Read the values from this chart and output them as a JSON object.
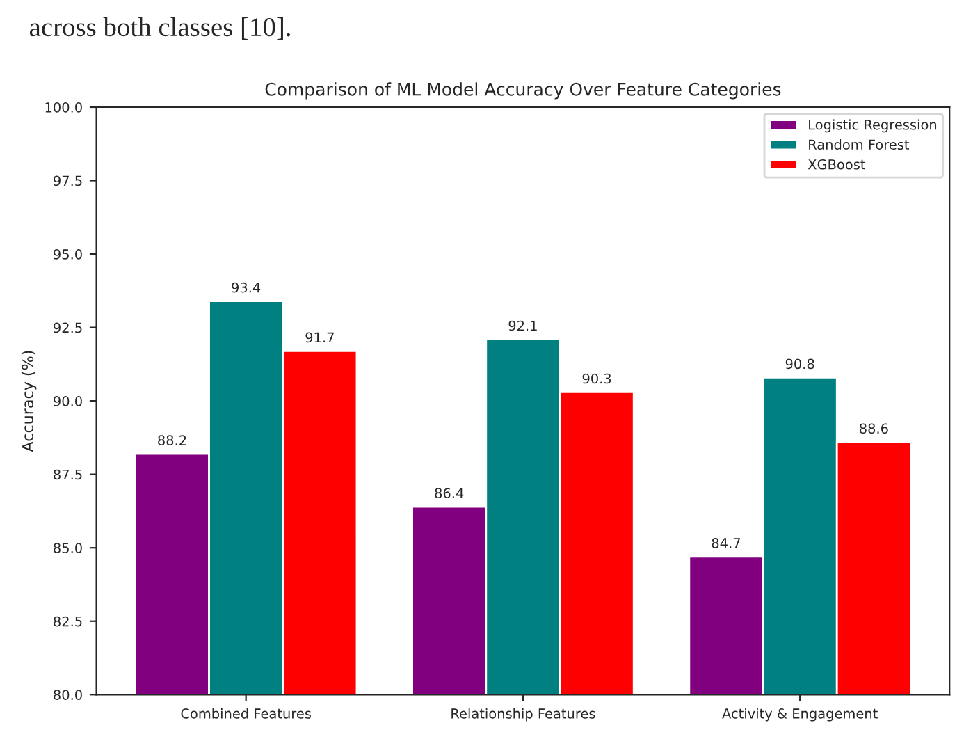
{
  "chart_data": {
    "type": "bar",
    "title": "Comparison of ML Model Accuracy Over Feature Categories",
    "ylabel": "Accuracy (%)",
    "categories": [
      "Combined Features",
      "Relationship Features",
      "Activity & Engagement"
    ],
    "series": [
      {
        "name": "Logistic Regression",
        "color": "#800080",
        "values": [
          88.2,
          86.4,
          84.7
        ]
      },
      {
        "name": "Random Forest",
        "color": "#008080",
        "values": [
          93.4,
          92.1,
          90.8
        ]
      },
      {
        "name": "XGBoost",
        "color": "#ff0000",
        "values": [
          91.7,
          90.3,
          88.6
        ]
      }
    ],
    "ylim": [
      80,
      100
    ],
    "yticks": [
      "80.0",
      "82.5",
      "85.0",
      "87.5",
      "90.0",
      "92.5",
      "95.0",
      "97.5",
      "100.0"
    ],
    "data_labels": true,
    "legend": "top right",
    "grid": false,
    "annotations": [
      "across both classes [10]."
    ]
  }
}
